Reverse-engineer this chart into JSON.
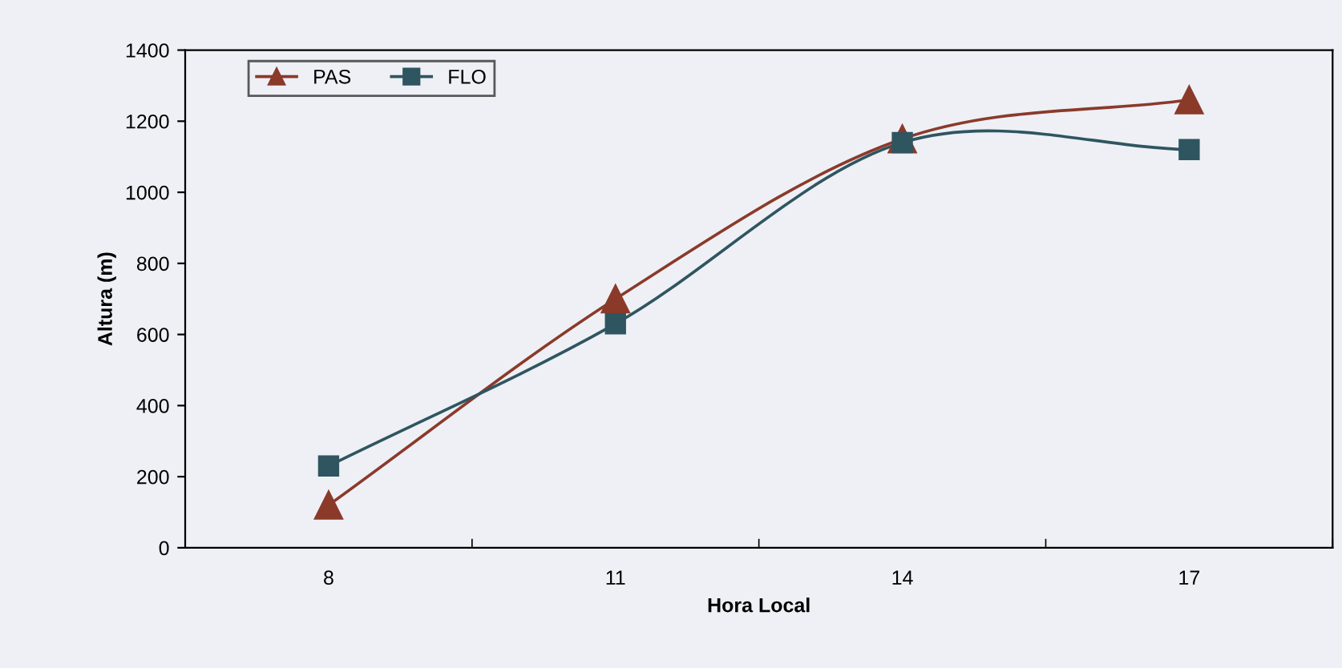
{
  "chart_data": {
    "type": "line",
    "xlabel": "Hora Local",
    "ylabel": "Altura (m)",
    "categories": [
      "8",
      "11",
      "14",
      "17"
    ],
    "series": [
      {
        "name": "PAS",
        "color": "#8b3a2a",
        "marker": "triangle",
        "values": [
          120,
          700,
          1150,
          1260
        ]
      },
      {
        "name": "FLO",
        "color": "#2f5560",
        "marker": "square",
        "values": [
          230,
          630,
          1140,
          1120
        ]
      }
    ],
    "ylim": [
      0,
      1400
    ],
    "yticks": [
      0,
      200,
      400,
      600,
      800,
      1000,
      1200,
      1400
    ],
    "grid": false,
    "legend": "top left"
  }
}
